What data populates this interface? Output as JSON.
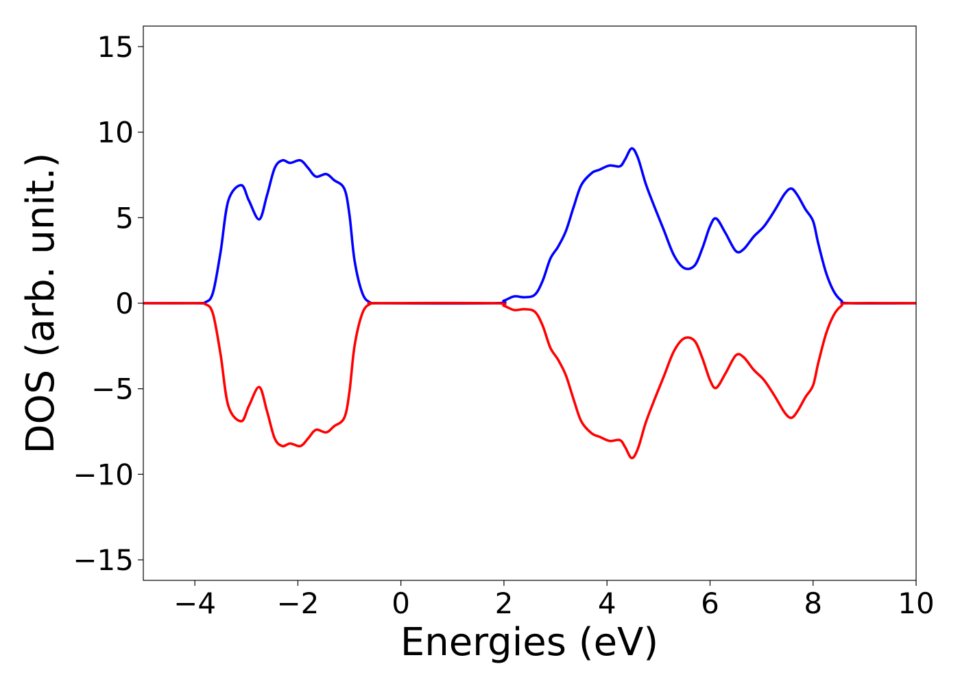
{
  "chart_data": {
    "type": "line",
    "xlabel": "Energies (eV)",
    "ylabel": "DOS (arb. unit.)",
    "xlim": [
      -5,
      10
    ],
    "ylim": [
      -16.2,
      16.2
    ],
    "x_ticks": [
      {
        "value": -4,
        "label": "−4"
      },
      {
        "value": -2,
        "label": "−2"
      },
      {
        "value": 0,
        "label": "0"
      },
      {
        "value": 2,
        "label": "2"
      },
      {
        "value": 4,
        "label": "4"
      },
      {
        "value": 6,
        "label": "6"
      },
      {
        "value": 8,
        "label": "8"
      },
      {
        "value": 10,
        "label": "10"
      }
    ],
    "y_ticks": [
      {
        "value": 15,
        "label": "15"
      },
      {
        "value": 10,
        "label": "10"
      },
      {
        "value": 5,
        "label": "5"
      },
      {
        "value": 0,
        "label": "0"
      },
      {
        "value": -5,
        "label": "−5"
      },
      {
        "value": -10,
        "label": "−10"
      },
      {
        "value": -15,
        "label": "−15"
      }
    ],
    "grid": false,
    "legend": "none",
    "series": [
      {
        "color": "#0000ff",
        "points": [
          [
            -5.0,
            0
          ],
          [
            -4.0,
            0
          ],
          [
            -3.8,
            0.05
          ],
          [
            -3.65,
            0.6
          ],
          [
            -3.5,
            3.0
          ],
          [
            -3.35,
            6.0
          ],
          [
            -3.1,
            6.9
          ],
          [
            -2.95,
            6.0
          ],
          [
            -2.75,
            4.9
          ],
          [
            -2.6,
            6.3
          ],
          [
            -2.45,
            7.9
          ],
          [
            -2.3,
            8.35
          ],
          [
            -2.15,
            8.2
          ],
          [
            -1.95,
            8.35
          ],
          [
            -1.8,
            7.9
          ],
          [
            -1.65,
            7.4
          ],
          [
            -1.45,
            7.55
          ],
          [
            -1.3,
            7.2
          ],
          [
            -1.1,
            6.7
          ],
          [
            -1.0,
            5.2
          ],
          [
            -0.9,
            2.5
          ],
          [
            -0.75,
            0.6
          ],
          [
            -0.6,
            0.05
          ],
          [
            -0.4,
            0
          ],
          [
            1.8,
            0
          ],
          [
            2.0,
            0.15
          ],
          [
            2.2,
            0.4
          ],
          [
            2.4,
            0.35
          ],
          [
            2.6,
            0.5
          ],
          [
            2.75,
            1.3
          ],
          [
            2.9,
            2.6
          ],
          [
            3.05,
            3.3
          ],
          [
            3.2,
            4.2
          ],
          [
            3.35,
            5.6
          ],
          [
            3.5,
            6.9
          ],
          [
            3.7,
            7.6
          ],
          [
            3.85,
            7.8
          ],
          [
            4.05,
            8.05
          ],
          [
            4.25,
            8.0
          ],
          [
            4.35,
            8.4
          ],
          [
            4.48,
            9.05
          ],
          [
            4.6,
            8.5
          ],
          [
            4.75,
            7.0
          ],
          [
            4.9,
            5.8
          ],
          [
            5.1,
            4.3
          ],
          [
            5.3,
            2.8
          ],
          [
            5.5,
            2.05
          ],
          [
            5.7,
            2.2
          ],
          [
            5.85,
            3.2
          ],
          [
            6.0,
            4.5
          ],
          [
            6.12,
            4.95
          ],
          [
            6.3,
            4.1
          ],
          [
            6.5,
            3.05
          ],
          [
            6.65,
            3.15
          ],
          [
            6.85,
            3.9
          ],
          [
            7.05,
            4.5
          ],
          [
            7.25,
            5.4
          ],
          [
            7.45,
            6.4
          ],
          [
            7.58,
            6.7
          ],
          [
            7.7,
            6.3
          ],
          [
            7.85,
            5.5
          ],
          [
            8.0,
            4.8
          ],
          [
            8.1,
            3.5
          ],
          [
            8.25,
            1.8
          ],
          [
            8.4,
            0.7
          ],
          [
            8.55,
            0.15
          ],
          [
            8.7,
            0
          ],
          [
            10.0,
            0
          ]
        ]
      },
      {
        "color": "#ff0000",
        "points": [
          [
            -5.0,
            0
          ],
          [
            -4.0,
            0
          ],
          [
            -3.8,
            -0.05
          ],
          [
            -3.65,
            -0.6
          ],
          [
            -3.5,
            -3.0
          ],
          [
            -3.35,
            -6.0
          ],
          [
            -3.1,
            -6.9
          ],
          [
            -2.95,
            -6.0
          ],
          [
            -2.75,
            -4.9
          ],
          [
            -2.6,
            -6.3
          ],
          [
            -2.45,
            -7.9
          ],
          [
            -2.3,
            -8.35
          ],
          [
            -2.15,
            -8.2
          ],
          [
            -1.95,
            -8.35
          ],
          [
            -1.8,
            -7.9
          ],
          [
            -1.65,
            -7.4
          ],
          [
            -1.45,
            -7.55
          ],
          [
            -1.3,
            -7.2
          ],
          [
            -1.1,
            -6.7
          ],
          [
            -1.0,
            -5.2
          ],
          [
            -0.9,
            -2.5
          ],
          [
            -0.75,
            -0.6
          ],
          [
            -0.6,
            -0.05
          ],
          [
            -0.4,
            0
          ],
          [
            1.8,
            0
          ],
          [
            2.0,
            -0.15
          ],
          [
            2.2,
            -0.4
          ],
          [
            2.4,
            -0.35
          ],
          [
            2.6,
            -0.5
          ],
          [
            2.75,
            -1.3
          ],
          [
            2.9,
            -2.6
          ],
          [
            3.05,
            -3.3
          ],
          [
            3.2,
            -4.2
          ],
          [
            3.35,
            -5.6
          ],
          [
            3.5,
            -6.9
          ],
          [
            3.7,
            -7.6
          ],
          [
            3.85,
            -7.8
          ],
          [
            4.05,
            -8.05
          ],
          [
            4.25,
            -8.0
          ],
          [
            4.35,
            -8.4
          ],
          [
            4.48,
            -9.05
          ],
          [
            4.6,
            -8.5
          ],
          [
            4.75,
            -7.0
          ],
          [
            4.9,
            -5.8
          ],
          [
            5.1,
            -4.3
          ],
          [
            5.3,
            -2.8
          ],
          [
            5.5,
            -2.05
          ],
          [
            5.7,
            -2.2
          ],
          [
            5.85,
            -3.2
          ],
          [
            6.0,
            -4.5
          ],
          [
            6.12,
            -4.95
          ],
          [
            6.3,
            -4.1
          ],
          [
            6.5,
            -3.05
          ],
          [
            6.65,
            -3.15
          ],
          [
            6.85,
            -3.9
          ],
          [
            7.05,
            -4.5
          ],
          [
            7.25,
            -5.4
          ],
          [
            7.45,
            -6.4
          ],
          [
            7.58,
            -6.7
          ],
          [
            7.7,
            -6.3
          ],
          [
            7.85,
            -5.5
          ],
          [
            8.0,
            -4.8
          ],
          [
            8.1,
            -3.5
          ],
          [
            8.25,
            -1.8
          ],
          [
            8.4,
            -0.7
          ],
          [
            8.55,
            -0.15
          ],
          [
            8.7,
            0
          ],
          [
            10.0,
            0
          ]
        ]
      }
    ]
  }
}
